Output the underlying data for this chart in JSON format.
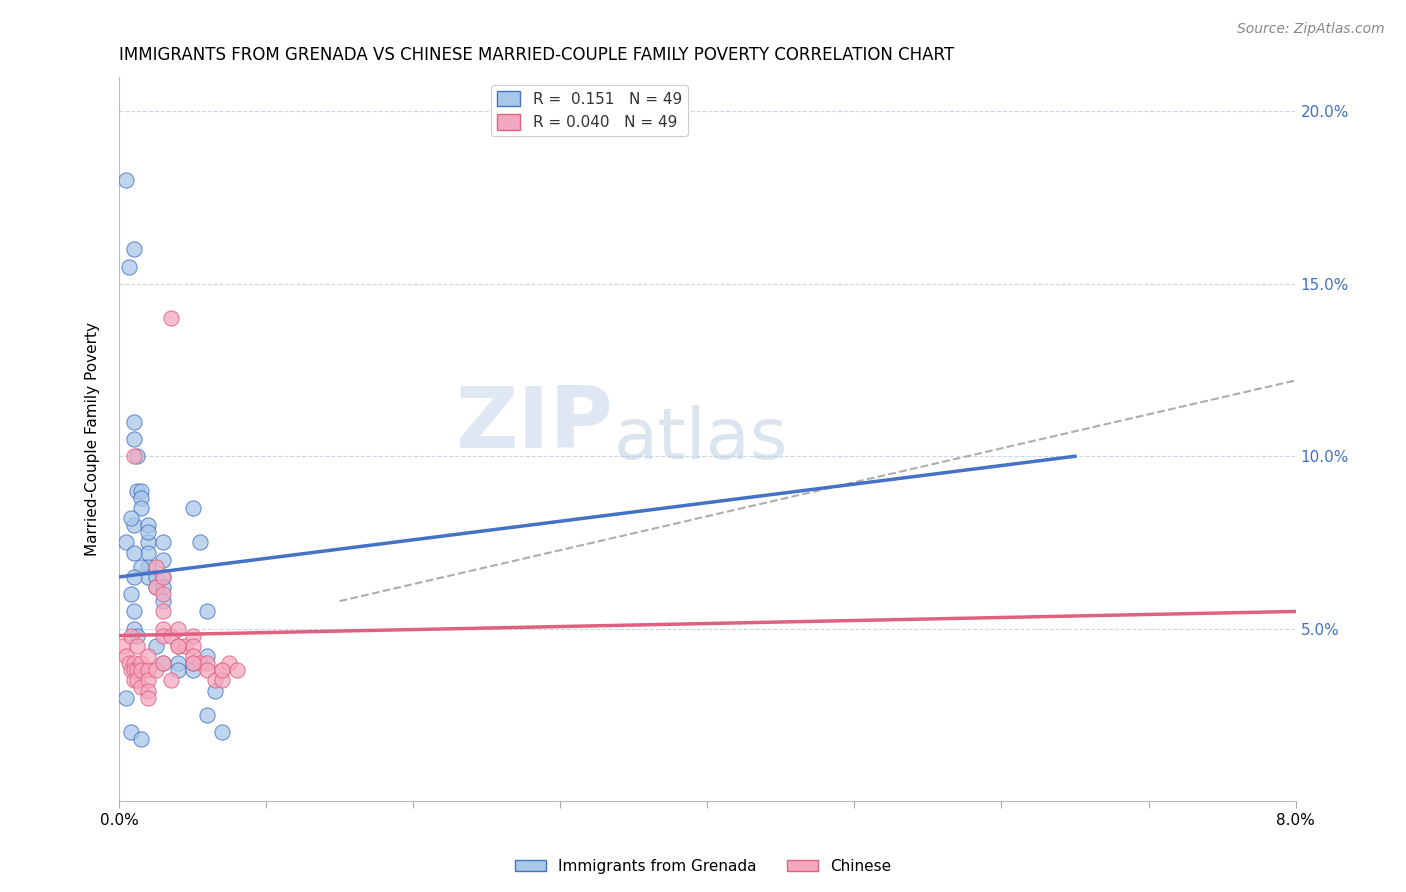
{
  "title": "IMMIGRANTS FROM GRENADA VS CHINESE MARRIED-COUPLE FAMILY POVERTY CORRELATION CHART",
  "source": "Source: ZipAtlas.com",
  "xlabel_bottom": "Immigrants from Grenada",
  "xlabel_bottom2": "Chinese",
  "ylabel": "Married-Couple Family Poverty",
  "r_grenada": 0.151,
  "n_grenada": 49,
  "r_chinese": 0.04,
  "n_chinese": 49,
  "color_grenada": "#a8c8e8",
  "color_chinese": "#f4a8c0",
  "color_grenada_line": "#4472c4",
  "color_chinese_line": "#e06080",
  "color_right_axis": "#4472c4",
  "watermark_zip": "ZIP",
  "watermark_atlas": "atlas",
  "xlim": [
    0.0,
    0.08
  ],
  "ylim": [
    0.0,
    0.21
  ],
  "yticks": [
    0.0,
    0.05,
    0.1,
    0.15,
    0.2
  ],
  "ytick_labels": [
    "",
    "5.0%",
    "10.0%",
    "15.0%",
    "20.0%"
  ],
  "xticks": [
    0.0,
    0.01,
    0.02,
    0.03,
    0.04,
    0.05,
    0.06,
    0.07,
    0.08
  ],
  "xtick_labels": [
    "0.0%",
    "",
    "",
    "",
    "",
    "",
    "",
    "",
    "8.0%"
  ],
  "grenada_x": [
    0.0005,
    0.0007,
    0.001,
    0.001,
    0.001,
    0.0012,
    0.0012,
    0.0015,
    0.0015,
    0.0015,
    0.001,
    0.0008,
    0.002,
    0.002,
    0.002,
    0.002,
    0.002,
    0.002,
    0.0025,
    0.0025,
    0.003,
    0.003,
    0.003,
    0.003,
    0.003,
    0.0005,
    0.001,
    0.0015,
    0.001,
    0.0008,
    0.001,
    0.001,
    0.0012,
    0.0025,
    0.003,
    0.004,
    0.004,
    0.005,
    0.005,
    0.005,
    0.0055,
    0.006,
    0.006,
    0.006,
    0.0065,
    0.007,
    0.0005,
    0.0008,
    0.0015
  ],
  "grenada_y": [
    0.18,
    0.155,
    0.16,
    0.11,
    0.105,
    0.1,
    0.09,
    0.09,
    0.088,
    0.085,
    0.08,
    0.082,
    0.08,
    0.075,
    0.078,
    0.072,
    0.068,
    0.065,
    0.065,
    0.062,
    0.075,
    0.07,
    0.065,
    0.062,
    0.058,
    0.075,
    0.072,
    0.068,
    0.065,
    0.06,
    0.055,
    0.05,
    0.048,
    0.045,
    0.04,
    0.04,
    0.038,
    0.085,
    0.038,
    0.04,
    0.075,
    0.042,
    0.055,
    0.025,
    0.032,
    0.02,
    0.03,
    0.02,
    0.018
  ],
  "chinese_x": [
    0.0003,
    0.0005,
    0.0007,
    0.0008,
    0.001,
    0.001,
    0.001,
    0.0012,
    0.0012,
    0.0015,
    0.0015,
    0.0015,
    0.002,
    0.002,
    0.002,
    0.002,
    0.0025,
    0.0025,
    0.003,
    0.003,
    0.003,
    0.003,
    0.003,
    0.0035,
    0.0035,
    0.004,
    0.004,
    0.0045,
    0.005,
    0.005,
    0.005,
    0.0055,
    0.006,
    0.006,
    0.0065,
    0.007,
    0.007,
    0.0075,
    0.008,
    0.001,
    0.0008,
    0.0012,
    0.002,
    0.0025,
    0.003,
    0.004,
    0.005,
    0.007,
    0.0035
  ],
  "chinese_y": [
    0.045,
    0.042,
    0.04,
    0.038,
    0.04,
    0.038,
    0.035,
    0.038,
    0.035,
    0.04,
    0.038,
    0.033,
    0.038,
    0.035,
    0.032,
    0.03,
    0.068,
    0.062,
    0.065,
    0.06,
    0.055,
    0.05,
    0.048,
    0.14,
    0.048,
    0.05,
    0.045,
    0.045,
    0.048,
    0.045,
    0.042,
    0.04,
    0.04,
    0.038,
    0.035,
    0.038,
    0.035,
    0.04,
    0.038,
    0.1,
    0.048,
    0.045,
    0.042,
    0.038,
    0.04,
    0.045,
    0.04,
    0.038,
    0.035
  ]
}
